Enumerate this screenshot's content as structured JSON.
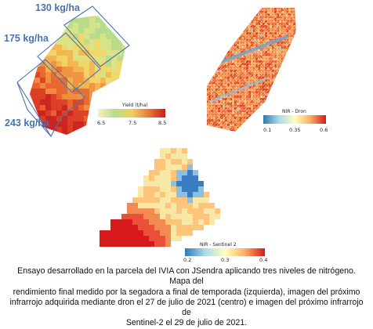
{
  "yield_figure": {
    "nitrogen_labels": [
      "130 kg/ha",
      "175 kg/ha",
      "243 kg/ha"
    ],
    "colorbar": {
      "title": "Yield (t/ha)",
      "ticks": [
        "6.5",
        "7.5",
        "8.5"
      ],
      "colors": [
        "#f3f3c0",
        "#b5dc8e",
        "#f0d060",
        "#e87a3a",
        "#c81e1e"
      ]
    }
  },
  "drone_figure": {
    "colorbar": {
      "title": "NIR - Dron",
      "ticks": [
        "0.1",
        "0.35",
        "0.6"
      ],
      "colors": [
        "#2c7bb6",
        "#abd9e9",
        "#ffffbf",
        "#fdae61",
        "#d7191c"
      ]
    }
  },
  "sentinel_figure": {
    "colorbar": {
      "title": "NIR - Sentinel 2",
      "ticks": [
        "0.2",
        "0.3",
        "0.4"
      ],
      "colors": [
        "#2c7bb6",
        "#abd9e9",
        "#ffffbf",
        "#fdae61",
        "#d7191c"
      ]
    }
  },
  "caption": {
    "line1": "Ensayo desarrollado en la parcela del IVIA con JSendra aplicando tres niveles de nitrógeno. Mapa del",
    "line2": "rendimiento final medido por la segadora a final de temporada (izquierda), imagen del próximo",
    "line3": "infrarrojo adquirida mediante dron el 27 de julio de 2021 (centro) e imagen del próximo infrarrojo de",
    "line4": "Sentinel-2 el 29 de julio de 2021."
  }
}
